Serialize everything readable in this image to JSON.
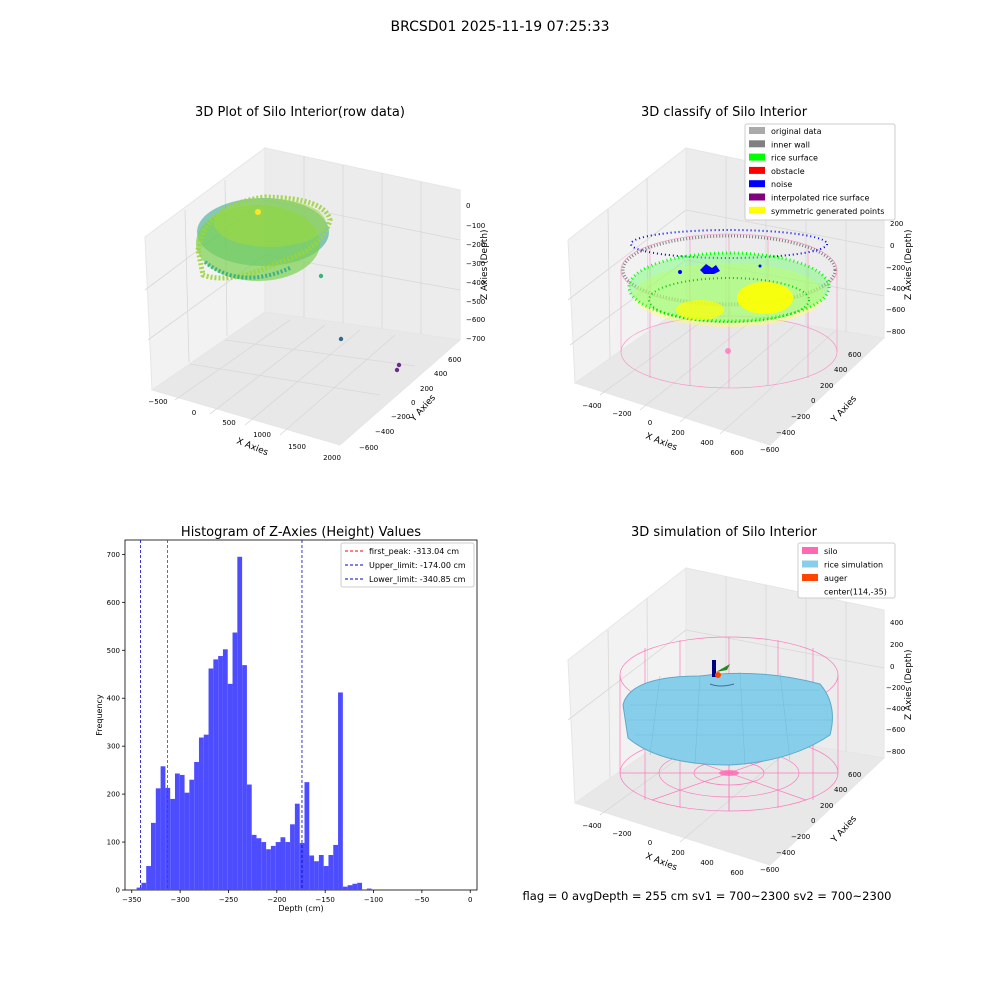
{
  "figure": {
    "suptitle": "BRCSD01 2025-11-19 07:25:33",
    "status_text": "flag = 0     avgDepth = 255 cm  sv1 = 700~2300  sv2 = 700~2300"
  },
  "colors": {
    "hist_bar": "#4d4dff",
    "first_peak_line": "#ff0000",
    "limit_line": "#0000cc",
    "pane": "#f2f2f2",
    "grid": "#dcdcdc",
    "silo": "#ff69b4",
    "rice_sim": "#87ceeb",
    "auger": "#ff4500",
    "orig": "#aaaaaa",
    "inner": "#808080",
    "rice": "#00ff00",
    "obstacle": "#ff0000",
    "noise": "#0000ff",
    "interp": "#800080",
    "sym": "#ffff00"
  },
  "plot_raw": {
    "title": "3D Plot of Silo Interior(row data)",
    "xlabel": "X Axies",
    "ylabel": "Y Axies",
    "zlabel": "Z Axies (Depth)",
    "x_ticks": [
      "−500",
      "0",
      "500",
      "1000",
      "1500",
      "2000"
    ],
    "y_ticks": [
      "600",
      "400",
      "200",
      "0",
      "−200",
      "−400",
      "−600"
    ],
    "z_ticks": [
      "0",
      "−100",
      "−200",
      "−300",
      "−400",
      "−500",
      "−600",
      "−700"
    ]
  },
  "plot_classify": {
    "title": "3D classify of Silo Interior",
    "xlabel": "X Axies",
    "ylabel": "Y Axies",
    "zlabel": "Z Axies (Depth)",
    "x_ticks": [
      "−400",
      "−200",
      "0",
      "200",
      "400",
      "600"
    ],
    "y_ticks": [
      "600",
      "400",
      "200",
      "0",
      "−200",
      "−400",
      "−600"
    ],
    "z_ticks": [
      "200",
      "0",
      "−200",
      "−400",
      "−600",
      "−800"
    ],
    "legend": [
      {
        "label": "original data",
        "color": "#aaaaaa"
      },
      {
        "label": "inner wall",
        "color": "#808080"
      },
      {
        "label": "rice surface",
        "color": "#00ff00"
      },
      {
        "label": "obstacle",
        "color": "#ff0000"
      },
      {
        "label": "noise",
        "color": "#0000ff"
      },
      {
        "label": "interpolated rice surface",
        "color": "#800080"
      },
      {
        "label": "symmetric generated points",
        "color": "#ffff00"
      }
    ]
  },
  "plot_sim": {
    "title": "3D simulation of Silo Interior",
    "xlabel": "X Axies",
    "ylabel": "Y Axies",
    "zlabel": "Z Axies (Depth)",
    "x_ticks": [
      "−400",
      "−200",
      "0",
      "200",
      "400",
      "600"
    ],
    "y_ticks": [
      "600",
      "400",
      "200",
      "0",
      "−200",
      "−400",
      "−600"
    ],
    "z_ticks": [
      "400",
      "200",
      "0",
      "−200",
      "−400",
      "−600",
      "−800"
    ],
    "legend": [
      {
        "label": "silo",
        "color": "#ff69b4"
      },
      {
        "label": "rice simulation",
        "color": "#87ceeb"
      },
      {
        "label": "auger",
        "color": "#ff4500"
      },
      {
        "label": "center(114,-35)",
        "color": "none"
      }
    ]
  },
  "chart_data": {
    "type": "bar",
    "title": "Histogram of Z-Axies (Height) Values",
    "xlabel": "Depth (cm)",
    "ylabel": "Frequency",
    "xlim": [
      -357,
      7
    ],
    "ylim": [
      0,
      730
    ],
    "x_ticks": [
      -350,
      -300,
      -250,
      -200,
      -150,
      -100,
      -50,
      0
    ],
    "y_ticks": [
      0,
      100,
      200,
      300,
      400,
      500,
      600,
      700
    ],
    "bin_start": -345,
    "bin_width": 4.96,
    "values": [
      5,
      15,
      50,
      140,
      212,
      258,
      213,
      190,
      243,
      240,
      203,
      230,
      267,
      318,
      324,
      462,
      481,
      488,
      502,
      430,
      537,
      695,
      469,
      220,
      115,
      108,
      100,
      85,
      92,
      100,
      110,
      100,
      137,
      180,
      98,
      225,
      72,
      60,
      73,
      50,
      73,
      94,
      412,
      7,
      10,
      13,
      15,
      0,
      3
    ],
    "vlines": [
      {
        "name": "first_peak: -313.04 cm",
        "x": -313.04,
        "color": "#ff0000"
      },
      {
        "name": "Upper_limit: -174.00 cm",
        "x": -174.0,
        "color": "#0000cc"
      },
      {
        "name": "Lower_limit: -340.85 cm",
        "x": -340.85,
        "color": "#0000cc"
      }
    ],
    "legend_position": "upper right",
    "grid": false
  }
}
